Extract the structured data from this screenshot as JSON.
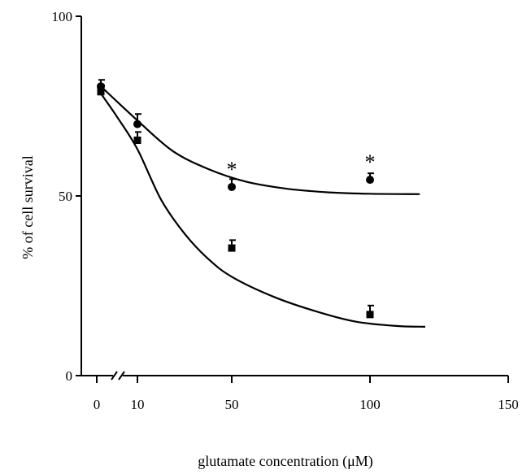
{
  "chart_data": {
    "type": "scatter",
    "xlabel": "glutamate concentration (μM)",
    "ylabel": "% of cell  survival",
    "xlim": [
      0,
      150
    ],
    "ylim": [
      0,
      100
    ],
    "x_axis_break": true,
    "x_ticks": [
      {
        "value": 0,
        "label": "0"
      },
      {
        "value": 10,
        "label": "10"
      },
      {
        "value": 50,
        "label": "50"
      },
      {
        "value": 100,
        "label": "100"
      },
      {
        "value": 150,
        "label": "150"
      }
    ],
    "y_ticks": [
      {
        "value": 0,
        "label": "0"
      },
      {
        "value": 50,
        "label": "50"
      },
      {
        "value": 100,
        "label": "100"
      }
    ],
    "series": [
      {
        "marker": "circle",
        "color": "#000000",
        "points": [
          {
            "x": 1,
            "y": 80.5,
            "err": 1.8
          },
          {
            "x": 10,
            "y": 70,
            "err": 2.8
          },
          {
            "x": 50,
            "y": 52.5,
            "err": 2.2
          },
          {
            "x": 100,
            "y": 54.5,
            "err": 1.8
          }
        ],
        "fit": [
          [
            1,
            80.5
          ],
          [
            10,
            71
          ],
          [
            25,
            62.5
          ],
          [
            40,
            57.5
          ],
          [
            55,
            54
          ],
          [
            70,
            52
          ],
          [
            85,
            51
          ],
          [
            100,
            50.6
          ],
          [
            118,
            50.5
          ]
        ]
      },
      {
        "marker": "square",
        "color": "#000000",
        "points": [
          {
            "x": 1,
            "y": 79,
            "err": 1.8
          },
          {
            "x": 10,
            "y": 65.5,
            "err": 2.3
          },
          {
            "x": 50,
            "y": 35.5,
            "err": 2.2
          },
          {
            "x": 100,
            "y": 17,
            "err": 2.5
          }
        ],
        "fit": [
          [
            1,
            78.5
          ],
          [
            5,
            72
          ],
          [
            10,
            63
          ],
          [
            20,
            49
          ],
          [
            30,
            39.5
          ],
          [
            40,
            32.5
          ],
          [
            50,
            27.5
          ],
          [
            65,
            22
          ],
          [
            80,
            18
          ],
          [
            95,
            15
          ],
          [
            110,
            13.8
          ],
          [
            120,
            13.6
          ]
        ]
      }
    ],
    "annotations": [
      {
        "text": "*",
        "x": 50,
        "y": 57.5
      },
      {
        "text": "*",
        "x": 100,
        "y": 59.5
      }
    ]
  }
}
